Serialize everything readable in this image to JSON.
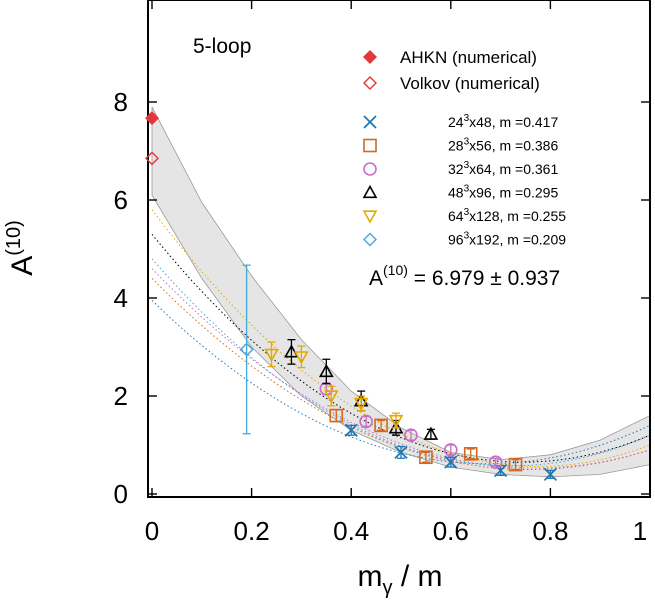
{
  "chart_data": {
    "type": "scatter",
    "panel_label": "5-loop",
    "xlabel": "m",
    "xlabel_sub": "γ",
    "xlabel_tail": " / m",
    "ylabel": "A",
    "ylabel_sup": "(10)",
    "xlim": [
      0,
      1
    ],
    "ylim": [
      0,
      10
    ],
    "xticks": [
      {
        "v": 0,
        "label": "0"
      },
      {
        "v": 0.2,
        "label": "0.2"
      },
      {
        "v": 0.4,
        "label": "0.4"
      },
      {
        "v": 0.6,
        "label": "0.6"
      },
      {
        "v": 0.8,
        "label": "0.8"
      },
      {
        "v": 1,
        "label": "1"
      }
    ],
    "yticks": [
      {
        "v": 0,
        "label": "0"
      },
      {
        "v": 2,
        "label": "2"
      },
      {
        "v": 4,
        "label": "4"
      },
      {
        "v": 6,
        "label": "6"
      },
      {
        "v": 8,
        "label": "8"
      }
    ],
    "result": {
      "prefix": "A",
      "sup": "(10)",
      "text": " = 6.979 ± 0.937"
    },
    "reference_points": [
      {
        "name": "AHKN (numerical)",
        "marker": "diamond-filled",
        "color": "#e0383b",
        "x": 0,
        "y": 7.67
      },
      {
        "name": "Volkov (numerical)",
        "marker": "diamond-open",
        "color": "#e0383b",
        "x": 0,
        "y": 6.85
      }
    ],
    "series": [
      {
        "lattice": "24",
        "sup": "3",
        "rest": "x48, m =0.417",
        "marker": "x",
        "color": "#1f78b4",
        "points": [
          [
            0.4,
            1.3,
            0.1
          ],
          [
            0.5,
            0.85,
            0.12
          ],
          [
            0.6,
            0.65,
            0.1
          ],
          [
            0.7,
            0.48,
            0.1
          ],
          [
            0.8,
            0.4,
            0.08
          ]
        ],
        "fit": [
          3.95,
          -9.9,
          7.35
        ]
      },
      {
        "lattice": "28",
        "sup": "3",
        "rest": "x56, m =0.386",
        "marker": "square",
        "color": "#d2691e",
        "points": [
          [
            0.37,
            1.6,
            0.12
          ],
          [
            0.46,
            1.4,
            0.1
          ],
          [
            0.55,
            0.75,
            0.1
          ],
          [
            0.64,
            0.82,
            0.1
          ],
          [
            0.73,
            0.6,
            0.1
          ]
        ],
        "fit": [
          4.4,
          -10.3,
          6.8
        ]
      },
      {
        "lattice": "32",
        "sup": "3",
        "rest": "x64, m =0.361",
        "marker": "circle",
        "color": "#c86ec8",
        "points": [
          [
            0.35,
            2.15,
            0.12
          ],
          [
            0.43,
            1.48,
            0.1
          ],
          [
            0.52,
            1.2,
            0.1
          ],
          [
            0.6,
            0.9,
            0.1
          ],
          [
            0.69,
            0.65,
            0.08
          ]
        ],
        "fit": [
          4.6,
          -10.6,
          6.9
        ]
      },
      {
        "lattice": "48",
        "sup": "3",
        "rest": "x96, m =0.295",
        "marker": "triangle-up",
        "color": "#000000",
        "points": [
          [
            0.28,
            2.9,
            0.25
          ],
          [
            0.35,
            2.5,
            0.25
          ],
          [
            0.42,
            1.9,
            0.2
          ],
          [
            0.49,
            1.35,
            0.15
          ],
          [
            0.56,
            1.22,
            0.1
          ]
        ],
        "fit": [
          5.3,
          -12.5,
          8.4
        ]
      },
      {
        "lattice": "64",
        "sup": "3",
        "rest": "x128, m =0.255",
        "marker": "triangle-down",
        "color": "#e6a800",
        "points": [
          [
            0.24,
            2.85,
            0.25
          ],
          [
            0.3,
            2.8,
            0.22
          ],
          [
            0.36,
            2.0,
            0.2
          ],
          [
            0.42,
            1.85,
            0.15
          ],
          [
            0.49,
            1.5,
            0.15
          ]
        ],
        "fit": [
          5.8,
          -13.5,
          8.7
        ]
      },
      {
        "lattice": "96",
        "sup": "3",
        "rest": "x192, m =0.209",
        "marker": "diamond-open",
        "color": "#45a8d8",
        "points": [
          [
            0.19,
            2.95,
            1.72
          ]
        ],
        "fit": [
          4.8,
          -11.7,
          8.1
        ]
      }
    ],
    "band": {
      "color": "#bfbfbf",
      "upper": [
        7.9,
        5.95,
        4.45,
        3.15,
        2.1,
        1.35,
        0.85,
        0.7,
        0.8,
        1.1,
        1.6
      ],
      "lower": [
        6.1,
        4.4,
        3.0,
        2.0,
        1.3,
        0.85,
        0.55,
        0.4,
        0.35,
        0.4,
        0.6
      ]
    }
  }
}
